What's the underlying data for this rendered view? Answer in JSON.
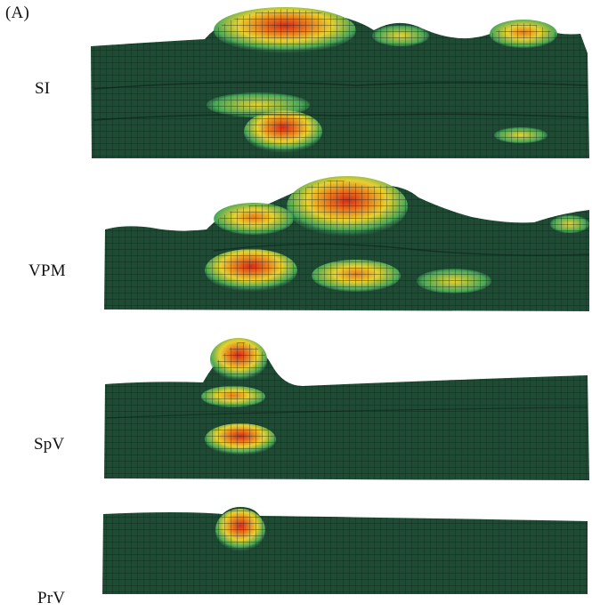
{
  "figure": {
    "panel_label": "(A)",
    "surfaces": [
      {
        "label": "SI"
      },
      {
        "label": "VPM"
      },
      {
        "label": "SpV"
      },
      {
        "label": "PrV"
      }
    ]
  },
  "colors": {
    "base": "#1e4a34",
    "mesh": "#0c2418",
    "low": "#4aa85a",
    "mid": "#e8d030",
    "high": "#e87a20",
    "peak": "#d82a1c"
  }
}
